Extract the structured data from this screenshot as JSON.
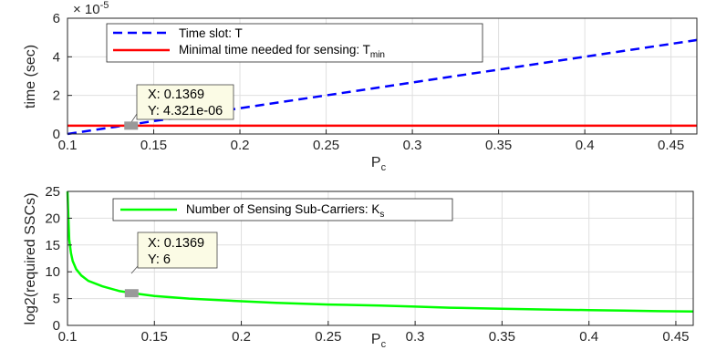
{
  "chart_data": [
    {
      "type": "line",
      "xlabel": "P",
      "xlabel_sub": "c",
      "ylabel": "time (sec)",
      "y_exponent_base": "× 10",
      "y_exponent_power": "-5",
      "xlim": [
        0.1,
        0.465
      ],
      "ylim": [
        0,
        6
      ],
      "xticks": [
        0.1,
        0.15,
        0.2,
        0.25,
        0.3,
        0.35,
        0.4,
        0.45
      ],
      "yticks": [
        0,
        2,
        4,
        6
      ],
      "grid": true,
      "legend_position": "top-left",
      "series": [
        {
          "name": "Time slot: T",
          "name_sub": "",
          "color": "#0000ff",
          "dashed": true,
          "x": [
            0.1,
            0.465
          ],
          "y": [
            0.0,
            4.87
          ]
        },
        {
          "name": "Minimal time needed for sensing: T",
          "name_sub": "min",
          "color": "#ff0000",
          "dashed": false,
          "x": [
            0.1,
            0.465
          ],
          "y": [
            0.4321,
            0.4321
          ]
        }
      ],
      "datatip": {
        "x": 0.1369,
        "y": 0.4321,
        "line1": "X: 0.1369",
        "line2": "Y: 4.321e-06"
      }
    },
    {
      "type": "line",
      "xlabel": "P",
      "xlabel_sub": "c",
      "ylabel": "log2(required SSCs)",
      "xlim": [
        0.1,
        0.46
      ],
      "ylim": [
        0,
        25
      ],
      "xticks": [
        0.1,
        0.15,
        0.2,
        0.25,
        0.3,
        0.35,
        0.4,
        0.45
      ],
      "yticks": [
        0,
        5,
        10,
        15,
        20,
        25
      ],
      "grid": true,
      "legend_position": "top-left",
      "series": [
        {
          "name": "Number of Sensing Sub-Carriers: K",
          "name_sub": "s",
          "color": "#00ff00",
          "dashed": false,
          "x": [
            0.1,
            0.1005,
            0.101,
            0.102,
            0.103,
            0.105,
            0.108,
            0.112,
            0.12,
            0.13,
            0.14,
            0.15,
            0.17,
            0.2,
            0.22,
            0.25,
            0.28,
            0.3,
            0.32,
            0.35,
            0.38,
            0.4,
            0.42,
            0.44,
            0.46
          ],
          "y": [
            25,
            20,
            16,
            13.5,
            12,
            10.5,
            9.3,
            8.3,
            7.3,
            6.4,
            5.9,
            5.5,
            5.0,
            4.5,
            4.2,
            3.9,
            3.7,
            3.5,
            3.3,
            3.1,
            2.95,
            2.85,
            2.75,
            2.65,
            2.6
          ]
        }
      ],
      "datatip": {
        "x": 0.1369,
        "y": 6,
        "line1": "X: 0.1369",
        "line2": "Y: 6"
      }
    }
  ]
}
